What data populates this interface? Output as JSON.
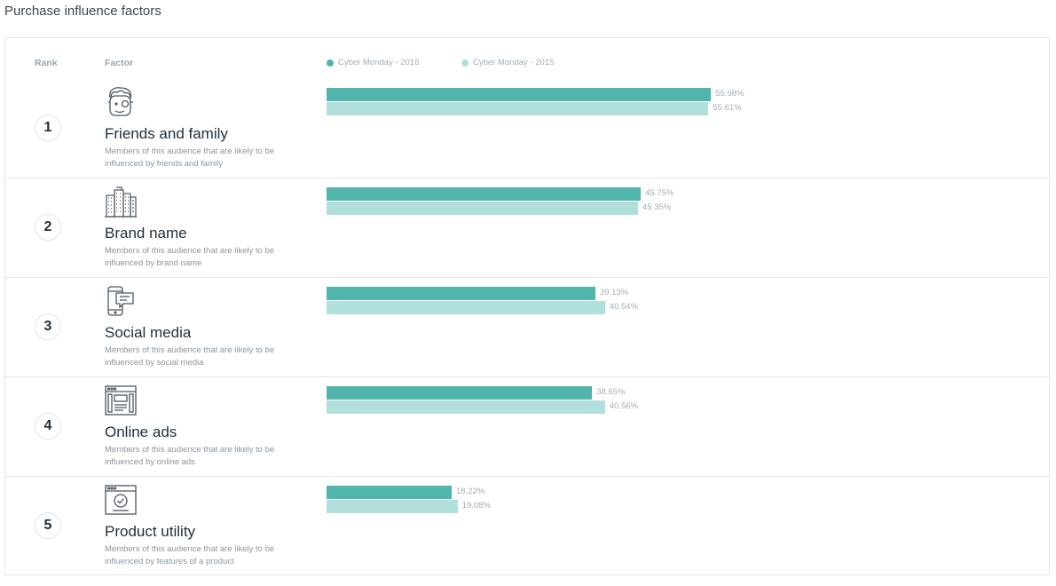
{
  "page_title": "Purchase influence factors",
  "header": {
    "rank_label": "Rank",
    "factor_label": "Factor"
  },
  "colors": {
    "series_2016": "#52b5ab",
    "series_2015": "#b1e0dc"
  },
  "chart_data": {
    "type": "bar",
    "orientation": "horizontal",
    "title": "Purchase influence factors",
    "categories": [
      "Friends and family",
      "Brand name",
      "Social media",
      "Online ads",
      "Product utility"
    ],
    "series": [
      {
        "name": "Cyber Monday - 2016",
        "values": [
          55.98,
          45.75,
          39.13,
          38.65,
          18.22
        ],
        "labels": [
          "55.98%",
          "45.75%",
          "39.13%",
          "38.65%",
          "18.22%"
        ]
      },
      {
        "name": "Cyber Monday - 2015",
        "values": [
          55.61,
          45.35,
          40.54,
          40.56,
          19.08
        ],
        "labels": [
          "55.61%",
          "45.35%",
          "40.54%",
          "40.56%",
          "19.08%"
        ]
      }
    ],
    "xlim": [
      0,
      100
    ],
    "legend": "top"
  },
  "rows": [
    {
      "rank": "1",
      "name": "Friends and family",
      "desc": "Members of this audience that are likely to be influenced by friends and family",
      "icon": "friends-icon"
    },
    {
      "rank": "2",
      "name": "Brand name",
      "desc": "Members of this audience that are likely to be influenced by brand name",
      "icon": "buildings-icon"
    },
    {
      "rank": "3",
      "name": "Social media",
      "desc": "Members of this audience that are likely to be influenced by social media",
      "icon": "phone-chat-icon"
    },
    {
      "rank": "4",
      "name": "Online ads",
      "desc": "Members of this audience that are likely to be influenced by online ads",
      "icon": "browser-ad-icon"
    },
    {
      "rank": "5",
      "name": "Product utility",
      "desc": "Members of this audience that are likely to be influenced by features of a product",
      "icon": "browser-check-icon"
    }
  ]
}
